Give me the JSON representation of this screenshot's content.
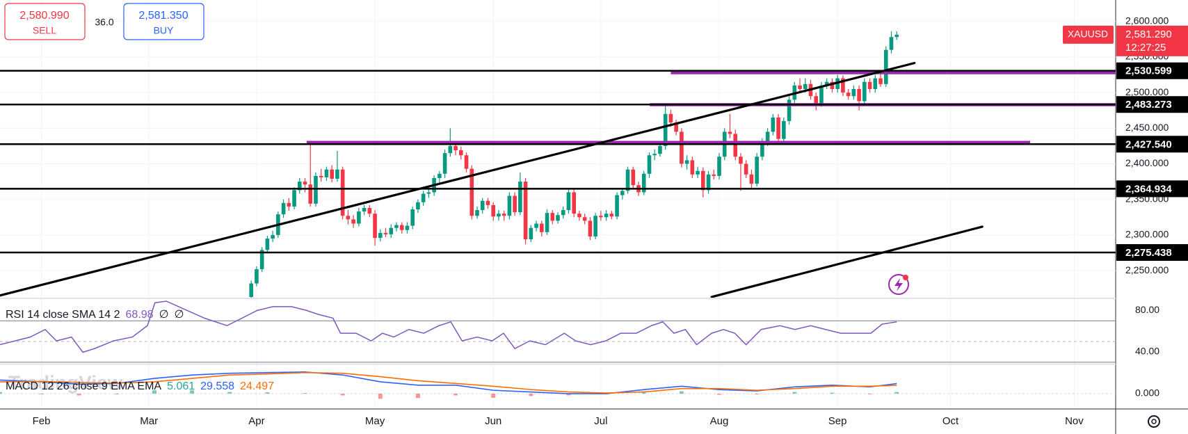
{
  "trade_panel": {
    "sell_price": "2,580.990",
    "sell_label": "SELL",
    "spread": "36.0",
    "buy_price": "2,581.350",
    "buy_label": "BUY"
  },
  "watermark": "TradingView",
  "chart_data": [
    {
      "type": "candlestick",
      "symbol": "XAUUSD",
      "countdown": "12:27:25",
      "last_price": {
        "value": 2581.29,
        "label": "2,581.290"
      },
      "colors": {
        "up": "#089981",
        "down": "#f23645",
        "level": "#000000",
        "zone": "#9c27b0",
        "trend": "#000000",
        "last": "#f23645"
      },
      "grid": true,
      "xlim": [
        -7.7,
        199.7
      ],
      "xticks": [
        {
          "value": 0,
          "label": "Feb"
        },
        {
          "value": 20,
          "label": "Mar"
        },
        {
          "value": 40,
          "label": "Apr"
        },
        {
          "value": 62,
          "label": "May"
        },
        {
          "value": 84,
          "label": "Jun"
        },
        {
          "value": 104,
          "label": "Jul"
        },
        {
          "value": 126,
          "label": "Aug"
        },
        {
          "value": 148,
          "label": "Sep"
        },
        {
          "value": 169,
          "label": "Oct"
        },
        {
          "value": 192,
          "label": "Nov"
        }
      ],
      "ylim": [
        2212,
        2630
      ],
      "yticks": [
        {
          "value": 2250,
          "label": "2,250.000"
        },
        {
          "value": 2300,
          "label": "2,300.000"
        },
        {
          "value": 2350,
          "label": "2,350.000"
        },
        {
          "value": 2400,
          "label": "2,400.000"
        },
        {
          "value": 2450,
          "label": "2,450.000"
        },
        {
          "value": 2500,
          "label": "2,500.000"
        },
        {
          "value": 2550,
          "label": "2,550.000"
        },
        {
          "value": 2600,
          "label": "2,600.000"
        }
      ],
      "levels": [
        {
          "value": 2530.599,
          "label": "2,530.599"
        },
        {
          "value": 2483.273,
          "label": "2,483.273"
        },
        {
          "value": 2427.54,
          "label": "2,427.540"
        },
        {
          "value": 2364.934,
          "label": "2,364.934"
        },
        {
          "value": 2275.438,
          "label": "2,275.438"
        }
      ],
      "zones": [
        {
          "value": 2528,
          "from": 117,
          "to": 199.7
        },
        {
          "value": 2483,
          "from": 113.1,
          "to": 199.7
        },
        {
          "value": 2430,
          "from": 49.3,
          "to": 183.8
        }
      ],
      "trend_lines": [
        {
          "x": [
            -7.75,
            162.3
          ],
          "y": [
            2215,
            2541.5
          ]
        },
        {
          "x": [
            124.6,
            174.9
          ],
          "y": [
            2213,
            2311.7
          ]
        }
      ],
      "x": [
        39,
        40,
        41,
        42,
        43,
        44,
        45,
        46,
        47,
        48,
        49,
        50,
        51,
        52,
        53,
        54,
        55,
        56,
        57,
        58,
        59,
        60,
        61,
        62,
        63,
        64,
        65,
        66,
        67,
        68,
        69,
        70,
        71,
        72,
        73,
        74,
        75,
        76,
        77,
        78,
        79,
        80,
        81,
        82,
        83,
        84,
        85,
        86,
        87,
        88,
        89,
        90,
        91,
        92,
        93,
        94,
        95,
        96,
        97,
        98,
        99,
        100,
        101,
        102,
        103,
        104,
        105,
        106,
        107,
        108,
        109,
        110,
        111,
        112,
        113,
        114,
        115,
        116,
        117,
        118,
        119,
        120,
        121,
        122,
        123,
        124,
        125,
        126,
        127,
        128,
        129,
        130,
        131,
        132,
        133,
        134,
        135,
        136,
        137,
        138,
        139,
        140,
        141,
        142,
        143,
        144,
        145,
        146,
        147,
        148,
        149,
        150,
        151,
        152,
        153,
        154,
        155,
        156,
        157,
        158,
        159
      ],
      "ohlc": [
        [
          2213,
          2236,
          2209,
          2232
        ],
        [
          2232,
          2256,
          2228,
          2252
        ],
        [
          2252,
          2283,
          2248,
          2279
        ],
        [
          2279,
          2299,
          2274,
          2295
        ],
        [
          2295,
          2306,
          2290,
          2300
        ],
        [
          2300,
          2333,
          2296,
          2329
        ],
        [
          2329,
          2350,
          2324,
          2345
        ],
        [
          2345,
          2352,
          2334,
          2340
        ],
        [
          2340,
          2367,
          2336,
          2363
        ],
        [
          2363,
          2380,
          2358,
          2375
        ],
        [
          2375,
          2380,
          2360,
          2371
        ],
        [
          2371,
          2431,
          2340,
          2344
        ],
        [
          2344,
          2388,
          2340,
          2383
        ],
        [
          2383,
          2393,
          2375,
          2381
        ],
        [
          2381,
          2396,
          2376,
          2392
        ],
        [
          2392,
          2398,
          2374,
          2379
        ],
        [
          2379,
          2418,
          2375,
          2392
        ],
        [
          2392,
          2396,
          2322,
          2327
        ],
        [
          2327,
          2335,
          2315,
          2322
        ],
        [
          2322,
          2328,
          2310,
          2316
        ],
        [
          2316,
          2338,
          2312,
          2333
        ],
        [
          2333,
          2342,
          2328,
          2338
        ],
        [
          2338,
          2342,
          2325,
          2330
        ],
        [
          2330,
          2335,
          2285,
          2296
        ],
        [
          2296,
          2308,
          2291,
          2303
        ],
        [
          2303,
          2310,
          2297,
          2301
        ],
        [
          2301,
          2315,
          2296,
          2310
        ],
        [
          2310,
          2318,
          2305,
          2314
        ],
        [
          2314,
          2318,
          2302,
          2307
        ],
        [
          2307,
          2318,
          2302,
          2313
        ],
        [
          2313,
          2340,
          2308,
          2336
        ],
        [
          2336,
          2350,
          2331,
          2346
        ],
        [
          2346,
          2362,
          2341,
          2358
        ],
        [
          2358,
          2365,
          2352,
          2360
        ],
        [
          2360,
          2384,
          2355,
          2380
        ],
        [
          2380,
          2390,
          2372,
          2386
        ],
        [
          2386,
          2420,
          2380,
          2415
        ],
        [
          2415,
          2450,
          2410,
          2425
        ],
        [
          2425,
          2430,
          2412,
          2419
        ],
        [
          2419,
          2424,
          2406,
          2412
        ],
        [
          2412,
          2416,
          2388,
          2393
        ],
        [
          2393,
          2398,
          2322,
          2327
        ],
        [
          2327,
          2340,
          2323,
          2335
        ],
        [
          2335,
          2352,
          2330,
          2348
        ],
        [
          2348,
          2352,
          2337,
          2342
        ],
        [
          2342,
          2346,
          2320,
          2326
        ],
        [
          2326,
          2335,
          2320,
          2330
        ],
        [
          2330,
          2334,
          2320,
          2327
        ],
        [
          2327,
          2360,
          2322,
          2355
        ],
        [
          2355,
          2360,
          2327,
          2332
        ],
        [
          2332,
          2388,
          2328,
          2375
        ],
        [
          2375,
          2380,
          2287,
          2294
        ],
        [
          2294,
          2314,
          2290,
          2310
        ],
        [
          2310,
          2320,
          2305,
          2316
        ],
        [
          2316,
          2320,
          2298,
          2304
        ],
        [
          2304,
          2336,
          2300,
          2331
        ],
        [
          2331,
          2335,
          2315,
          2320
        ],
        [
          2320,
          2332,
          2316,
          2328
        ],
        [
          2328,
          2340,
          2323,
          2335
        ],
        [
          2335,
          2365,
          2330,
          2360
        ],
        [
          2360,
          2364,
          2325,
          2330
        ],
        [
          2330,
          2334,
          2320,
          2325
        ],
        [
          2325,
          2330,
          2315,
          2320
        ],
        [
          2320,
          2325,
          2293,
          2298
        ],
        [
          2298,
          2331,
          2294,
          2327
        ],
        [
          2327,
          2334,
          2320,
          2325
        ],
        [
          2325,
          2335,
          2320,
          2330
        ],
        [
          2330,
          2334,
          2322,
          2326
        ],
        [
          2326,
          2360,
          2322,
          2356
        ],
        [
          2356,
          2366,
          2350,
          2362
        ],
        [
          2362,
          2396,
          2358,
          2392
        ],
        [
          2392,
          2396,
          2365,
          2370
        ],
        [
          2370,
          2375,
          2355,
          2360
        ],
        [
          2360,
          2390,
          2356,
          2386
        ],
        [
          2386,
          2416,
          2380,
          2412
        ],
        [
          2412,
          2420,
          2405,
          2414
        ],
        [
          2414,
          2430,
          2410,
          2425
        ],
        [
          2425,
          2483,
          2420,
          2470
        ],
        [
          2470,
          2476,
          2452,
          2458
        ],
        [
          2458,
          2462,
          2440,
          2445
        ],
        [
          2445,
          2450,
          2395,
          2400
        ],
        [
          2400,
          2412,
          2392,
          2405
        ],
        [
          2405,
          2410,
          2380,
          2385
        ],
        [
          2385,
          2396,
          2380,
          2390
        ],
        [
          2390,
          2395,
          2353,
          2363
        ],
        [
          2363,
          2390,
          2358,
          2385
        ],
        [
          2385,
          2392,
          2378,
          2383
        ],
        [
          2383,
          2415,
          2378,
          2410
        ],
        [
          2410,
          2450,
          2405,
          2445
        ],
        [
          2445,
          2470,
          2436,
          2442
        ],
        [
          2442,
          2448,
          2405,
          2410
        ],
        [
          2410,
          2415,
          2362,
          2400
        ],
        [
          2400,
          2405,
          2380,
          2385
        ],
        [
          2385,
          2392,
          2366,
          2372
        ],
        [
          2372,
          2415,
          2368,
          2410
        ],
        [
          2410,
          2436,
          2405,
          2430
        ],
        [
          2430,
          2450,
          2425,
          2445
        ],
        [
          2445,
          2470,
          2440,
          2465
        ],
        [
          2465,
          2470,
          2430,
          2435
        ],
        [
          2435,
          2465,
          2430,
          2460
        ],
        [
          2460,
          2495,
          2455,
          2490
        ],
        [
          2490,
          2515,
          2485,
          2510
        ],
        [
          2510,
          2520,
          2500,
          2505
        ],
        [
          2505,
          2520,
          2500,
          2512
        ],
        [
          2512,
          2518,
          2490,
          2495
        ],
        [
          2495,
          2500,
          2475,
          2484
        ],
        [
          2484,
          2515,
          2480,
          2510
        ],
        [
          2510,
          2520,
          2505,
          2515
        ],
        [
          2515,
          2520,
          2500,
          2505
        ],
        [
          2505,
          2525,
          2500,
          2520
        ],
        [
          2520,
          2524,
          2495,
          2500
        ],
        [
          2500,
          2505,
          2490,
          2495
        ],
        [
          2495,
          2510,
          2490,
          2505
        ],
        [
          2505,
          2510,
          2475,
          2488
        ],
        [
          2488,
          2520,
          2484,
          2515
        ],
        [
          2515,
          2520,
          2500,
          2505
        ],
        [
          2505,
          2525,
          2500,
          2520
        ],
        [
          2520,
          2528,
          2508,
          2512
        ],
        [
          2512,
          2565,
          2508,
          2560
        ],
        [
          2560,
          2586,
          2555,
          2578
        ],
        [
          2578,
          2586,
          2574,
          2581.29
        ]
      ]
    },
    {
      "type": "line",
      "title": "RSI 14 close SMA 14 2",
      "na_values": [
        "∅",
        "∅"
      ],
      "color": "#7e57c2",
      "xlim": [
        -7.7,
        199.7
      ],
      "ylim": [
        28.5,
        91
      ],
      "yticks": [
        {
          "value": 80,
          "label": "80.00"
        },
        {
          "value": 40,
          "label": "40.00"
        }
      ],
      "bands": [
        70,
        30
      ],
      "midline": 50,
      "x": [
        -7.7,
        -4.9,
        -2.1,
        0.7,
        2.8,
        5.6,
        7.7,
        9.9,
        13.4,
        16.9,
        19.7,
        21.1,
        23.2,
        30.3,
        34.5,
        37.3,
        40.1,
        43,
        46.5,
        49.3,
        51.4,
        54.2,
        55.6,
        58.5,
        61.3,
        63.4,
        65.5,
        68.3,
        71.1,
        73.9,
        76.1,
        78.2,
        81,
        83.8,
        85.9,
        88,
        90.8,
        93.7,
        97.2,
        99.3,
        102.1,
        104.9,
        107.7,
        110.6,
        113.4,
        115.5,
        117.6,
        119.7,
        121.8,
        124.6,
        126.8,
        128.9,
        131,
        133.8,
        137.3,
        140.1,
        143,
        145.8,
        148.6,
        151.4,
        154.2,
        156.3,
        159
      ],
      "values": [
        47,
        50.6,
        54.3,
        61.6,
        50.6,
        54.3,
        39.6,
        43.2,
        50.6,
        54.3,
        65.3,
        87.4,
        89,
        72.6,
        65.3,
        72.6,
        80,
        83.7,
        83.7,
        80,
        76.3,
        72.6,
        58,
        58,
        50.6,
        58,
        54.3,
        61.6,
        58,
        65.3,
        69,
        50.6,
        54.3,
        50.6,
        58,
        43.2,
        50.6,
        46.9,
        58,
        50.6,
        46.9,
        50.6,
        58,
        58,
        65.3,
        69,
        58,
        61.6,
        46.9,
        58,
        61.6,
        58,
        46.9,
        61.6,
        65.3,
        61.6,
        65.3,
        61.6,
        58,
        58,
        58,
        66.8,
        68.98
      ]
    },
    {
      "type": "macd",
      "title": "MACD 12 26 close 9 EMA EMA",
      "xlim": [
        -7.7,
        199.7
      ],
      "ylim": [
        -45,
        86
      ],
      "yticks": [
        {
          "value": 0,
          "label": "0.000"
        }
      ],
      "x": [
        -7.7,
        0,
        7,
        14,
        21,
        28,
        35,
        42,
        49,
        56,
        63,
        70,
        77,
        84,
        91,
        98,
        105,
        112,
        119,
        126,
        133,
        140,
        147,
        154,
        159
      ],
      "series": [
        {
          "color": "#26a69a",
          "negative_color": "#ef5350",
          "values": [
            5,
            -1,
            -5,
            -1,
            10,
            10,
            5,
            4,
            2,
            -5,
            -15,
            -13,
            -5,
            -12,
            -7,
            -5,
            -2,
            7,
            7,
            -3,
            -2,
            5,
            3,
            -2,
            5.061
          ]
        },
        {
          "color": "#2962ff",
          "values": [
            40,
            35,
            28,
            30,
            45,
            55,
            60,
            62,
            64,
            55,
            35,
            25,
            25,
            10,
            5,
            0,
            0,
            12,
            22,
            12,
            8,
            20,
            25,
            20,
            29.558
          ]
        },
        {
          "color": "#ff6d00",
          "values": [
            35,
            36,
            33,
            31,
            35,
            45,
            55,
            58,
            62,
            60,
            50,
            38,
            30,
            22,
            12,
            5,
            2,
            5,
            15,
            15,
            10,
            15,
            22,
            22,
            24.497
          ]
        }
      ]
    }
  ]
}
